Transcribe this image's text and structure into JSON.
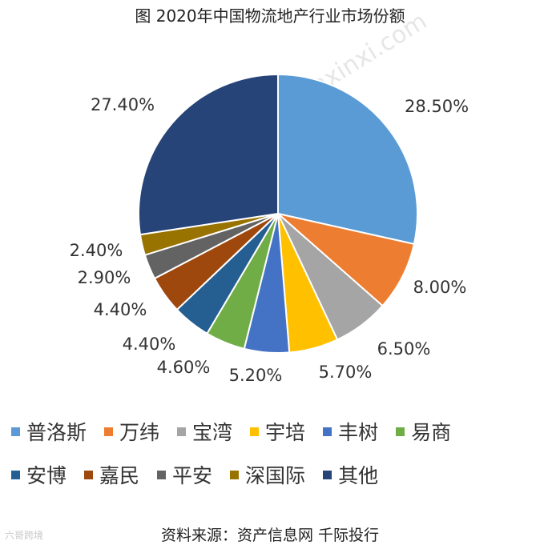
{
  "title": "图 2020年中国物流地产行业市场份额",
  "source": "资料来源：资产信息网 千际投行",
  "watermark": "zichanxinxi.com",
  "corner_watermark": "六哥跨境",
  "chart_data": {
    "type": "pie",
    "title": "图 2020年中国物流地产行业市场份额",
    "slices": [
      {
        "name": "普洛斯",
        "value": 28.5,
        "label": "28.50%",
        "color": "#5B9BD5"
      },
      {
        "name": "万纬",
        "value": 8.0,
        "label": "8.00%",
        "color": "#ED7D31"
      },
      {
        "name": "宝湾",
        "value": 6.5,
        "label": "6.50%",
        "color": "#A5A5A5"
      },
      {
        "name": "宇培",
        "value": 5.7,
        "label": "5.70%",
        "color": "#FFC000"
      },
      {
        "name": "丰树",
        "value": 5.2,
        "label": "5.20%",
        "color": "#4472C4"
      },
      {
        "name": "易商",
        "value": 4.6,
        "label": "4.60%",
        "color": "#70AD47"
      },
      {
        "name": "安博",
        "value": 4.4,
        "label": "4.40%",
        "color": "#255E91"
      },
      {
        "name": "嘉民",
        "value": 4.4,
        "label": "4.40%",
        "color": "#9E480E"
      },
      {
        "name": "平安",
        "value": 2.9,
        "label": "2.90%",
        "color": "#636363"
      },
      {
        "name": "深国际",
        "value": 2.4,
        "label": "2.40%",
        "color": "#997300"
      },
      {
        "name": "其他",
        "value": 27.4,
        "label": "27.40%",
        "color": "#264478"
      }
    ],
    "legend_position": "bottom",
    "start_angle": "12 o'clock",
    "direction": "clockwise"
  }
}
